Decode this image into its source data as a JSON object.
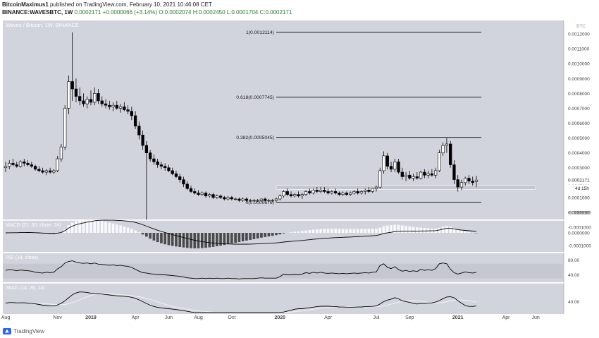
{
  "header": {
    "publisher": "BitcoinMaximus1",
    "published_text": "published on TradingView.com, February 10, 2021 10:46:08 CET",
    "symbol_line": "BINANCE:WAVESBTC, 1W",
    "last_price": "0.0002171",
    "change": "+0.0000066 (+3.14%)",
    "ohlc": "O:0.0002074 H:0.0002450 L:0.0001704 C:0.0002171"
  },
  "footer": {
    "brand": "TradingView"
  },
  "chart_data": {
    "type": "candlestick",
    "title": "Waves / Bitcoin, 1W, BINANCE",
    "currency_label": "BTC",
    "price_axis": {
      "ylim": [
        -0.0001,
        0.0013
      ],
      "ticks": [
        "0.0012000",
        "0.0011000",
        "0.0010000",
        "0.0009000",
        "0.0008000",
        "0.0007000",
        "0.0006000",
        "0.0005000",
        "0.0004000",
        "0.0003000",
        "0.0002000",
        "0.0001000",
        "0.0000000",
        "-0.0000000",
        "-0.0001000"
      ],
      "tick_values": [
        0.0012,
        0.0011,
        0.001,
        0.0009,
        0.0008,
        0.0007,
        0.0006,
        0.0005,
        0.0004,
        0.0003,
        0.0002,
        0.0001,
        0.0,
        -1e-08,
        -0.0001
      ],
      "last_price_label": "0.0002171",
      "countdown_label": "4d 15h"
    },
    "time_axis": {
      "labels": [
        "Aug",
        "Nov",
        "2019",
        "Apr",
        "Jun",
        "Aug",
        "Oct",
        "2020",
        "Apr",
        "Jul",
        "Sep",
        "2021",
        "Apr",
        "Jun"
      ],
      "weeks": [
        0,
        14,
        23,
        35,
        44,
        52,
        61,
        74,
        87,
        100,
        109,
        122,
        135,
        143
      ]
    },
    "fibonacci": [
      {
        "label": "1(0.0012114)",
        "value": 0.0012114
      },
      {
        "label": "0.618(0.0007745)",
        "value": 0.0007745
      },
      {
        "label": "0.382(0.0005045)",
        "value": 0.0005045
      },
      {
        "label": "0(0.0000676)",
        "value": 6.76e-05
      }
    ],
    "support_zone": [
      0.000155,
      0.00018
    ],
    "ohlc": [
      [
        0.0003,
        0.00034,
        0.00027,
        0.00031
      ],
      [
        0.00031,
        0.00035,
        0.00029,
        0.00033
      ],
      [
        0.00033,
        0.00036,
        0.00031,
        0.00032
      ],
      [
        0.00032,
        0.00034,
        0.0003,
        0.00031
      ],
      [
        0.00031,
        0.00035,
        0.0003,
        0.00034
      ],
      [
        0.00034,
        0.00036,
        0.00031,
        0.00033
      ],
      [
        0.00033,
        0.00035,
        0.00031,
        0.00032
      ],
      [
        0.00032,
        0.00034,
        0.0003,
        0.00031
      ],
      [
        0.00031,
        0.00032,
        0.00028,
        0.00029
      ],
      [
        0.00029,
        0.00031,
        0.00027,
        0.00028
      ],
      [
        0.00028,
        0.0003,
        0.00026,
        0.00027
      ],
      [
        0.00027,
        0.00029,
        0.00025,
        0.00028
      ],
      [
        0.00028,
        0.0003,
        0.00026,
        0.00027
      ],
      [
        0.00027,
        0.00029,
        0.00026,
        0.00028
      ],
      [
        0.00028,
        0.00038,
        0.00027,
        0.00036
      ],
      [
        0.00036,
        0.00046,
        0.00034,
        0.00044
      ],
      [
        0.00044,
        0.00072,
        0.00042,
        0.0007
      ],
      [
        0.0007,
        0.00092,
        0.00066,
        0.00088
      ],
      [
        0.00088,
        0.00121,
        0.00075,
        0.00083
      ],
      [
        0.00083,
        0.0009,
        0.00074,
        0.00078
      ],
      [
        0.00078,
        0.00084,
        0.00072,
        0.00075
      ],
      [
        0.00075,
        0.0008,
        0.00071,
        0.00073
      ],
      [
        0.00073,
        0.00078,
        0.0007,
        0.00076
      ],
      [
        0.00076,
        0.00082,
        0.00072,
        0.00074
      ],
      [
        0.00074,
        0.00084,
        0.00072,
        0.0008
      ],
      [
        0.0008,
        0.00083,
        0.00073,
        0.00075
      ],
      [
        0.00075,
        0.00078,
        0.00071,
        0.00073
      ],
      [
        0.00073,
        0.00076,
        0.0007,
        0.00072
      ],
      [
        0.00072,
        0.00075,
        0.00069,
        0.00071
      ],
      [
        0.00071,
        0.00074,
        0.00068,
        0.00072
      ],
      [
        0.00072,
        0.00075,
        0.00069,
        0.0007
      ],
      [
        0.0007,
        0.00073,
        0.00067,
        0.00071
      ],
      [
        0.00071,
        0.00074,
        0.00068,
        0.00069
      ],
      [
        0.00069,
        0.00072,
        0.00066,
        0.00068
      ],
      [
        0.00068,
        0.00071,
        0.00062,
        0.00065
      ],
      [
        0.00065,
        0.00068,
        0.00056,
        0.00058
      ],
      [
        0.00058,
        0.00061,
        0.00049,
        0.00052
      ],
      [
        0.00052,
        0.00055,
        0.00042,
        0.00045
      ],
      [
        0.00045,
        0.00048,
        -5e-05,
        0.0004
      ],
      [
        0.0004,
        0.00042,
        0.00034,
        0.00036
      ],
      [
        0.00036,
        0.00039,
        0.00032,
        0.00034
      ],
      [
        0.00034,
        0.00036,
        0.0003,
        0.00032
      ],
      [
        0.00032,
        0.00034,
        0.00029,
        0.00031
      ],
      [
        0.00031,
        0.00033,
        0.00028,
        0.0003
      ],
      [
        0.0003,
        0.00032,
        0.00027,
        0.00028
      ],
      [
        0.00028,
        0.0003,
        0.00025,
        0.00026
      ],
      [
        0.00026,
        0.00028,
        0.00023,
        0.00024
      ],
      [
        0.00024,
        0.00026,
        0.0002,
        0.00022
      ],
      [
        0.00022,
        0.00024,
        0.00017,
        0.00019
      ],
      [
        0.00019,
        0.00021,
        0.00015,
        0.00016
      ],
      [
        0.00016,
        0.00018,
        0.00013,
        0.00014
      ],
      [
        0.00014,
        0.00016,
        0.00012,
        0.00013
      ],
      [
        0.00013,
        0.00015,
        0.00011,
        0.00012
      ],
      [
        0.00012,
        0.00014,
        0.00011,
        0.00013
      ],
      [
        0.00013,
        0.00014,
        0.0001,
        0.00011
      ],
      [
        0.00011,
        0.00013,
        0.0001,
        0.00012
      ],
      [
        0.00012,
        0.00013,
        9e-05,
        0.0001
      ],
      [
        0.0001,
        0.00012,
        9e-05,
        0.00011
      ],
      [
        0.00011,
        0.00012,
        9e-05,
        0.0001
      ],
      [
        0.0001,
        0.00011,
        8e-05,
        9e-05
      ],
      [
        9e-05,
        0.00011,
        8e-05,
        0.0001
      ],
      [
        0.0001,
        0.00011,
        8e-05,
        9e-05
      ],
      [
        9e-05,
        0.0001,
        8e-05,
        9e-05
      ],
      [
        9e-05,
        0.0001,
        7e-05,
        8e-05
      ],
      [
        8e-05,
        0.0001,
        7e-05,
        9e-05
      ],
      [
        9e-05,
        0.0001,
        7e-05,
        8e-05
      ],
      [
        8e-05,
        9e-05,
        7e-05,
        8e-05
      ],
      [
        8e-05,
        9e-05,
        7e-05,
        8e-05
      ],
      [
        8e-05,
        9e-05,
        7e-05,
        8e-05
      ],
      [
        8e-05,
        9e-05,
        7e-05,
        9e-05
      ],
      [
        9e-05,
        0.0001,
        7e-05,
        8e-05
      ],
      [
        8e-05,
        9e-05,
        7e-05,
        8e-05
      ],
      [
        8e-05,
        9e-05,
        7e-05,
        8e-05
      ],
      [
        8e-05,
        0.0001,
        7e-05,
        9e-05
      ],
      [
        9e-05,
        0.00012,
        8e-05,
        0.00011
      ],
      [
        0.00011,
        0.00015,
        0.0001,
        0.00014
      ],
      [
        0.00014,
        0.00016,
        0.00011,
        0.00012
      ],
      [
        0.00012,
        0.00014,
        0.0001,
        0.00011
      ],
      [
        0.00011,
        0.00013,
        0.0001,
        0.00012
      ],
      [
        0.00012,
        0.00014,
        0.0001,
        0.00011
      ],
      [
        0.00011,
        0.00013,
        9e-05,
        0.00012
      ],
      [
        0.00012,
        0.00015,
        0.00011,
        0.00014
      ],
      [
        0.00014,
        0.00016,
        0.00012,
        0.00013
      ],
      [
        0.00013,
        0.00016,
        0.00012,
        0.00015
      ],
      [
        0.00015,
        0.00017,
        0.00013,
        0.00014
      ],
      [
        0.00014,
        0.00017,
        0.00013,
        0.00015
      ],
      [
        0.00015,
        0.00017,
        0.00013,
        0.00014
      ],
      [
        0.00014,
        0.00016,
        0.00012,
        0.00013
      ],
      [
        0.00013,
        0.00015,
        0.00012,
        0.00014
      ],
      [
        0.00014,
        0.00016,
        0.00012,
        0.00013
      ],
      [
        0.00013,
        0.00014,
        0.00011,
        0.00012
      ],
      [
        0.00012,
        0.00014,
        0.00011,
        0.00013
      ],
      [
        0.00013,
        0.00014,
        0.00011,
        0.00012
      ],
      [
        0.00012,
        0.00014,
        0.00011,
        0.00013
      ],
      [
        0.00013,
        0.00015,
        0.00012,
        0.00014
      ],
      [
        0.00014,
        0.00016,
        0.00012,
        0.00013
      ],
      [
        0.00013,
        0.00015,
        0.00012,
        0.00014
      ],
      [
        0.00014,
        0.00016,
        0.00012,
        0.00015
      ],
      [
        0.00015,
        0.00017,
        0.00013,
        0.00014
      ],
      [
        0.00014,
        0.00016,
        0.00013,
        0.00016
      ],
      [
        0.00016,
        0.00018,
        0.00014,
        0.00017
      ],
      [
        0.00017,
        0.0003,
        0.00016,
        0.00028
      ],
      [
        0.00028,
        0.00041,
        0.00026,
        0.00038
      ],
      [
        0.00038,
        0.0004,
        0.00029,
        0.00031
      ],
      [
        0.00031,
        0.00034,
        0.00027,
        0.00029
      ],
      [
        0.00029,
        0.00036,
        0.00027,
        0.00034
      ],
      [
        0.00034,
        0.00036,
        0.00026,
        0.00027
      ],
      [
        0.00027,
        0.0003,
        0.00022,
        0.00024
      ],
      [
        0.00024,
        0.00027,
        0.00021,
        0.00025
      ],
      [
        0.00025,
        0.00028,
        0.00022,
        0.00023
      ],
      [
        0.00023,
        0.00026,
        0.00021,
        0.00024
      ],
      [
        0.00024,
        0.00027,
        0.00022,
        0.00023
      ],
      [
        0.00023,
        0.00028,
        0.00022,
        0.00027
      ],
      [
        0.00027,
        0.00029,
        0.00023,
        0.00025
      ],
      [
        0.00025,
        0.00028,
        0.00023,
        0.00026
      ],
      [
        0.00026,
        0.00029,
        0.00024,
        0.00025
      ],
      [
        0.00025,
        0.0003,
        0.00023,
        0.00028
      ],
      [
        0.00028,
        0.00042,
        0.00027,
        0.0004
      ],
      [
        0.0004,
        0.00047,
        0.00038,
        0.00045
      ],
      [
        0.00045,
        0.0005,
        0.0004,
        0.00046
      ],
      [
        0.00046,
        0.00048,
        0.0003,
        0.00032
      ],
      [
        0.00032,
        0.00035,
        0.00019,
        0.00022
      ],
      [
        0.00022,
        0.00025,
        0.00014,
        0.00017
      ],
      [
        0.00017,
        0.00022,
        0.00015,
        0.0002
      ],
      [
        0.0002,
        0.00024,
        0.00018,
        0.00023
      ],
      [
        0.00023,
        0.00025,
        0.00019,
        0.00021
      ],
      [
        0.00021,
        0.00024,
        0.00018,
        0.0002
      ],
      [
        0.0002074,
        0.000245,
        0.0001704,
        0.0002171
      ]
    ],
    "indicators": [
      {
        "name": "MACD (21, 50, close, 24)",
        "ylim": [
          -0.00015,
          0.0001
        ],
        "ticks": [
          "0.0000000",
          "-0.0001000"
        ],
        "tick_values": [
          0.0,
          -0.0001
        ]
      },
      {
        "name": "RSI (14, close)",
        "ylim": [
          20,
          100
        ],
        "ticks": [
          "80.00",
          "40.00"
        ],
        "tick_values": [
          80,
          40
        ],
        "band": [
          30,
          70
        ],
        "values": [
          52,
          54,
          53,
          51,
          53,
          52,
          51,
          50,
          47,
          46,
          45,
          47,
          46,
          47,
          56,
          62,
          72,
          76,
          78,
          74,
          72,
          71,
          72,
          70,
          72,
          69,
          68,
          67,
          66,
          67,
          65,
          66,
          64,
          63,
          60,
          55,
          50,
          46,
          45,
          43,
          42,
          41,
          41,
          40,
          39,
          38,
          37,
          36,
          34,
          32,
          31,
          30,
          30,
          31,
          30,
          31,
          30,
          31,
          30,
          30,
          31,
          30,
          30,
          29,
          30,
          30,
          30,
          30,
          31,
          32,
          31,
          31,
          31,
          31,
          35,
          42,
          40,
          40,
          41,
          40,
          42,
          46,
          44,
          47,
          45,
          47,
          45,
          44,
          45,
          44,
          43,
          44,
          43,
          44,
          45,
          44,
          45,
          46,
          45,
          47,
          48,
          65,
          70,
          60,
          57,
          62,
          54,
          50,
          52,
          49,
          51,
          49,
          55,
          52,
          54,
          52,
          57,
          70,
          72,
          70,
          55,
          46,
          42,
          45,
          48,
          46,
          45,
          47
        ]
      },
      {
        "name": "Stoch (14, 28, 14)",
        "ylim": [
          0,
          100
        ],
        "ticks": [
          "40.00"
        ],
        "tick_values": [
          40
        ]
      }
    ]
  }
}
